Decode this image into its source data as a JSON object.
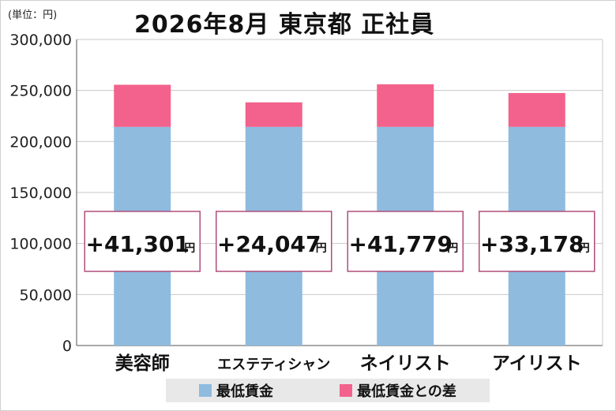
{
  "unit_label": "(単位：円)",
  "title": "2026年8月 東京都 正社員",
  "colors": {
    "base": "#8fbbdf",
    "diff": "#f2628c",
    "box_border": "#b04d7a",
    "axis": "#555555",
    "grid": "#c8c8c8"
  },
  "chart_data": {
    "type": "bar",
    "stacked": true,
    "title": "2026年8月 東京都 正社員",
    "ylabel": "(単位：円)",
    "ylim": [
      0,
      300000
    ],
    "yticks": [
      "0",
      "50,000",
      "100,000",
      "150,000",
      "200,000",
      "250,000",
      "300,000"
    ],
    "ytick_values": [
      0,
      50000,
      100000,
      150000,
      200000,
      250000,
      300000
    ],
    "grid": true,
    "legend_position": "bottom",
    "categories": [
      "美容師",
      "エステティシャン",
      "ネイリスト",
      "アイリスト"
    ],
    "series": [
      {
        "name": "最低賃金",
        "values": [
          214302,
          214302,
          214302,
          214302
        ]
      },
      {
        "name": "最低賃金との差",
        "values": [
          41301,
          24047,
          41779,
          33178
        ]
      }
    ],
    "annotations": [
      {
        "number": "+41,301",
        "unit": "円"
      },
      {
        "number": "+24,047",
        "unit": "円"
      },
      {
        "number": "+41,779",
        "unit": "円"
      },
      {
        "number": "+33,178",
        "unit": "円"
      }
    ]
  }
}
